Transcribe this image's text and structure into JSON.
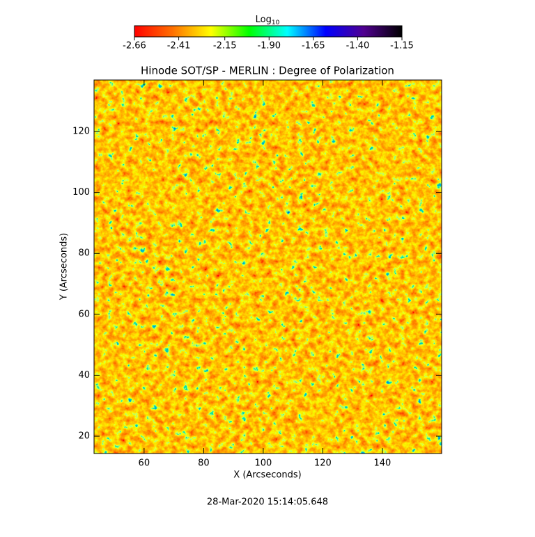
{
  "chart_data": {
    "type": "heatmap",
    "title": "Hinode SOT/SP - MERLIN : Degree of Polarization",
    "x_label": "X (Arcseconds)",
    "y_label": "Y (Arcseconds)",
    "xlim": [
      43.2,
      159.9
    ],
    "xticks": [
      60,
      80,
      100,
      120,
      140
    ],
    "ylim": [
      14.3,
      136.9
    ],
    "yticks": [
      20,
      40,
      60,
      80,
      100,
      120
    ],
    "colorbar": {
      "label": "Log",
      "label_sub": "10",
      "clim": [
        -2.66,
        -1.15
      ],
      "ticks": [
        -2.66,
        -2.41,
        -2.15,
        {
          "value": -1.9,
          "label": "-1.90"
        },
        -1.65,
        {
          "value": -1.4,
          "label": "-1.40"
        },
        -1.15
      ],
      "colors": [
        "#ff0000",
        "#ff7000",
        "#ffff00",
        "#00ff00",
        "#00ffff",
        "#0000ff",
        "#500090",
        "#000000"
      ]
    },
    "footer": "28-Mar-2020 15:14:05.648"
  }
}
